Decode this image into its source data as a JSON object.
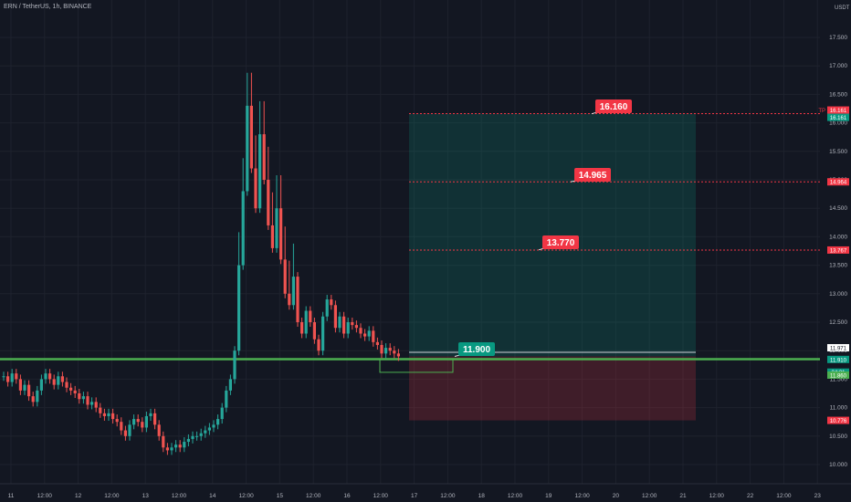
{
  "title": "ERN / TetherUS, 1h, BINANCE",
  "chart_data": {
    "type": "candlestick",
    "title": "ERN / TetherUS, 1h, BINANCE",
    "unit": "USDT",
    "y_ticks": [
      "10.000",
      "10.500",
      "11.000",
      "11.500",
      "12.000",
      "12.500",
      "13.000",
      "13.500",
      "14.000",
      "14.500",
      "15.000",
      "15.500",
      "16.000",
      "16.500",
      "17.000",
      "17.500"
    ],
    "ylim": [
      9.75,
      18.0
    ],
    "x_ticks": [
      "11",
      "12:00",
      "12",
      "12:00",
      "13",
      "12:00",
      "14",
      "12:00",
      "15",
      "12:00",
      "16",
      "12:00",
      "17",
      "12:00",
      "18",
      "12:00",
      "19",
      "12:00",
      "20",
      "12:00",
      "21",
      "12:00",
      "22",
      "12:00",
      "23"
    ],
    "grid": true,
    "series_approx_close": [
      11.55,
      11.45,
      11.6,
      11.5,
      11.3,
      11.4,
      11.2,
      11.1,
      11.3,
      11.5,
      11.6,
      11.5,
      11.4,
      11.55,
      11.45,
      11.35,
      11.3,
      11.25,
      11.15,
      11.2,
      11.05,
      11.1,
      11.0,
      10.9,
      10.85,
      10.9,
      10.8,
      10.75,
      10.6,
      10.5,
      10.7,
      10.8,
      10.75,
      10.65,
      10.85,
      10.9,
      10.7,
      10.5,
      10.3,
      10.25,
      10.3,
      10.35,
      10.3,
      10.4,
      10.45,
      10.5,
      10.5,
      10.55,
      10.6,
      10.65,
      10.7,
      10.8,
      11.0,
      11.3,
      11.5,
      12.0,
      13.5,
      14.8,
      16.3,
      15.2,
      14.5,
      15.8,
      15.0,
      14.2,
      13.8,
      14.5,
      13.6,
      13.0,
      12.8,
      13.3,
      12.5,
      12.3,
      12.7,
      12.5,
      12.2,
      12.0,
      12.6,
      12.9,
      12.8,
      12.4,
      12.6,
      12.3,
      12.5,
      12.45,
      12.4,
      12.3,
      12.25,
      12.35,
      12.15,
      12.1,
      11.95,
      12.05,
      12.0,
      11.95,
      11.9
    ],
    "position": {
      "entry": 11.9,
      "take_profit": 16.161,
      "stop": 10.776
    },
    "annotations": [
      {
        "label": "16.160",
        "value": 16.16
      },
      {
        "label": "14.965",
        "value": 14.965
      },
      {
        "label": "13.770",
        "value": 13.77
      },
      {
        "label": "11.900",
        "value": 11.9
      }
    ],
    "axis_badges": [
      {
        "label": "16.161",
        "color": "#f23645",
        "value": 16.161,
        "prefix": "TP"
      },
      {
        "label": "16.161",
        "color": "#089981",
        "value": 16.161
      },
      {
        "label": "14.964",
        "color": "#f23645",
        "value": 14.964
      },
      {
        "label": "13.767",
        "color": "#f23645",
        "value": 13.767
      },
      {
        "label": "11.971",
        "color": "#ffffff",
        "value": 11.971
      },
      {
        "label": "11.910",
        "color": "#089981",
        "value": 11.91
      },
      {
        "label": "24:31",
        "color": "#089981",
        "value": 11.8
      },
      {
        "label": "11.860",
        "color": "#4caf50",
        "value": 11.86
      },
      {
        "label": "10.776",
        "color": "#f23645",
        "value": 10.776
      }
    ],
    "support_line": 11.85
  }
}
